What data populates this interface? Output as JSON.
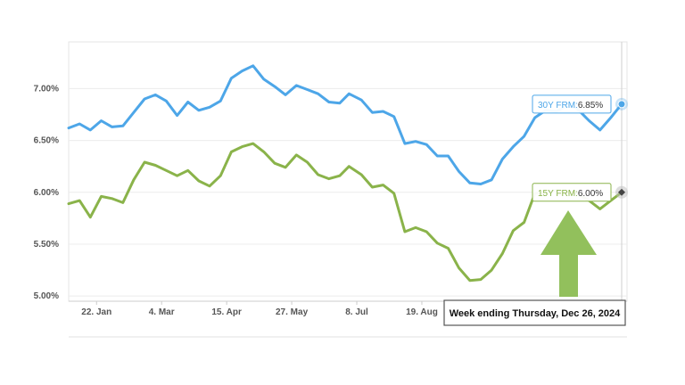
{
  "chart_data": {
    "type": "line",
    "title": "",
    "xlabel": "",
    "ylabel": "",
    "x_tick_labels": [
      "22. Jan",
      "4. Mar",
      "15. Apr",
      "27. May",
      "8. Jul",
      "19. Aug"
    ],
    "y_tick_labels": [
      "5.00%",
      "5.50%",
      "6.00%",
      "6.50%",
      "7.00%"
    ],
    "ylim": [
      4.95,
      7.45
    ],
    "grid": "horizontal",
    "legend": "none",
    "x": [
      "2024-01-04",
      "2024-01-11",
      "2024-01-18",
      "2024-01-25",
      "2024-02-01",
      "2024-02-08",
      "2024-02-15",
      "2024-02-22",
      "2024-02-29",
      "2024-03-07",
      "2024-03-14",
      "2024-03-21",
      "2024-03-28",
      "2024-04-04",
      "2024-04-11",
      "2024-04-18",
      "2024-04-25",
      "2024-05-02",
      "2024-05-09",
      "2024-05-16",
      "2024-05-23",
      "2024-05-30",
      "2024-06-06",
      "2024-06-13",
      "2024-06-20",
      "2024-06-27",
      "2024-07-03",
      "2024-07-11",
      "2024-07-18",
      "2024-07-25",
      "2024-08-01",
      "2024-08-08",
      "2024-08-15",
      "2024-08-22",
      "2024-08-29",
      "2024-09-05",
      "2024-09-12",
      "2024-09-19",
      "2024-09-26",
      "2024-10-03",
      "2024-10-10",
      "2024-10-17",
      "2024-10-24",
      "2024-10-31",
      "2024-11-07",
      "2024-11-14",
      "2024-11-21",
      "2024-11-27",
      "2024-12-05",
      "2024-12-12",
      "2024-12-19",
      "2024-12-26"
    ],
    "series": [
      {
        "name": "30Y FRM",
        "color": "#4da6e8",
        "values": [
          6.62,
          6.66,
          6.6,
          6.69,
          6.63,
          6.64,
          6.77,
          6.9,
          6.94,
          6.88,
          6.74,
          6.87,
          6.79,
          6.82,
          6.88,
          7.1,
          7.17,
          7.22,
          7.09,
          7.02,
          6.94,
          7.03,
          6.99,
          6.95,
          6.87,
          6.86,
          6.95,
          6.89,
          6.77,
          6.78,
          6.73,
          6.47,
          6.49,
          6.46,
          6.35,
          6.35,
          6.2,
          6.09,
          6.08,
          6.12,
          6.32,
          6.44,
          6.54,
          6.72,
          6.79,
          6.78,
          6.84,
          6.81,
          6.69,
          6.6,
          6.72,
          6.85
        ]
      },
      {
        "name": "15Y FRM",
        "color": "#8ab34a",
        "values": [
          5.89,
          5.92,
          5.76,
          5.96,
          5.94,
          5.9,
          6.12,
          6.29,
          6.26,
          6.21,
          6.16,
          6.21,
          6.11,
          6.06,
          6.16,
          6.39,
          6.44,
          6.47,
          6.39,
          6.28,
          6.24,
          6.36,
          6.29,
          6.17,
          6.13,
          6.16,
          6.25,
          6.17,
          6.05,
          6.07,
          5.99,
          5.62,
          5.66,
          5.62,
          5.51,
          5.46,
          5.27,
          5.15,
          5.16,
          5.25,
          5.41,
          5.63,
          5.71,
          5.99,
          6.0,
          6.02,
          6.0,
          5.99,
          5.92,
          5.84,
          5.92,
          6.0
        ]
      }
    ],
    "tooltips": [
      {
        "series": "30Y FRM",
        "label": "30Y FRM:",
        "value": "6.85%"
      },
      {
        "series": "15Y FRM",
        "label": "15Y FRM:",
        "value": "6.00%"
      }
    ],
    "annotation": "Week ending Thursday, Dec 26, 2024",
    "arrow_color": "#92c05c"
  }
}
